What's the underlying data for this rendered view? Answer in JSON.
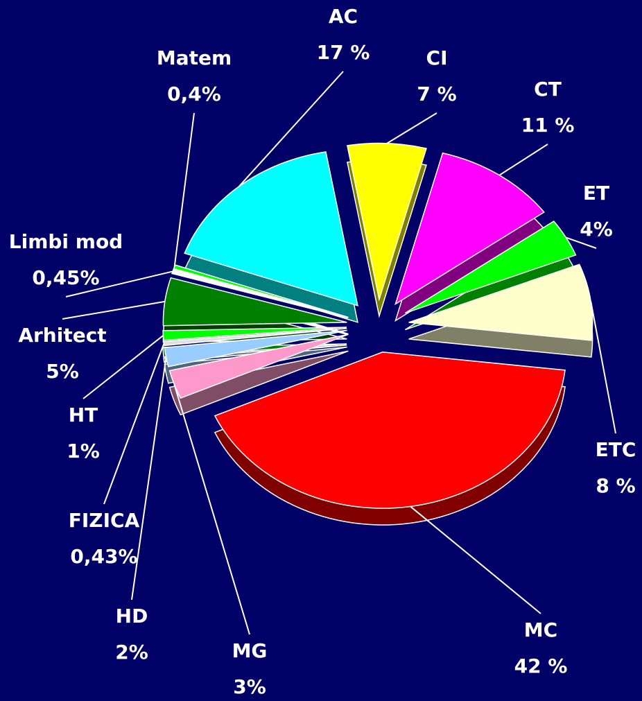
{
  "chart_data": {
    "type": "pie",
    "categories": [
      "CI",
      "CT",
      "ET",
      "ETC",
      "MC",
      "MG",
      "HD",
      "FIZICA",
      "HT",
      "Arhitect",
      "Limbi mod",
      "Matem",
      "AC"
    ],
    "values": [
      7,
      11,
      4,
      8,
      42,
      3,
      2,
      0.43,
      1,
      5,
      0.45,
      0.4,
      17
    ],
    "value_labels": [
      "7 %",
      "11 %",
      "4%",
      "8 %",
      "42 %",
      "3%",
      "2%",
      "0,43%",
      "1%",
      "5%",
      "0,45%",
      "0,4%",
      "17 %"
    ],
    "colors": [
      "#ffff00",
      "#ff00ff",
      "#00ff00",
      "#ffffcc",
      "#ff0000",
      "#ff99cc",
      "#99ccff",
      "#e0e0e0",
      "#00ff00",
      "#008000",
      "#ffffff",
      "#00ff00",
      "#00ffff"
    ]
  }
}
